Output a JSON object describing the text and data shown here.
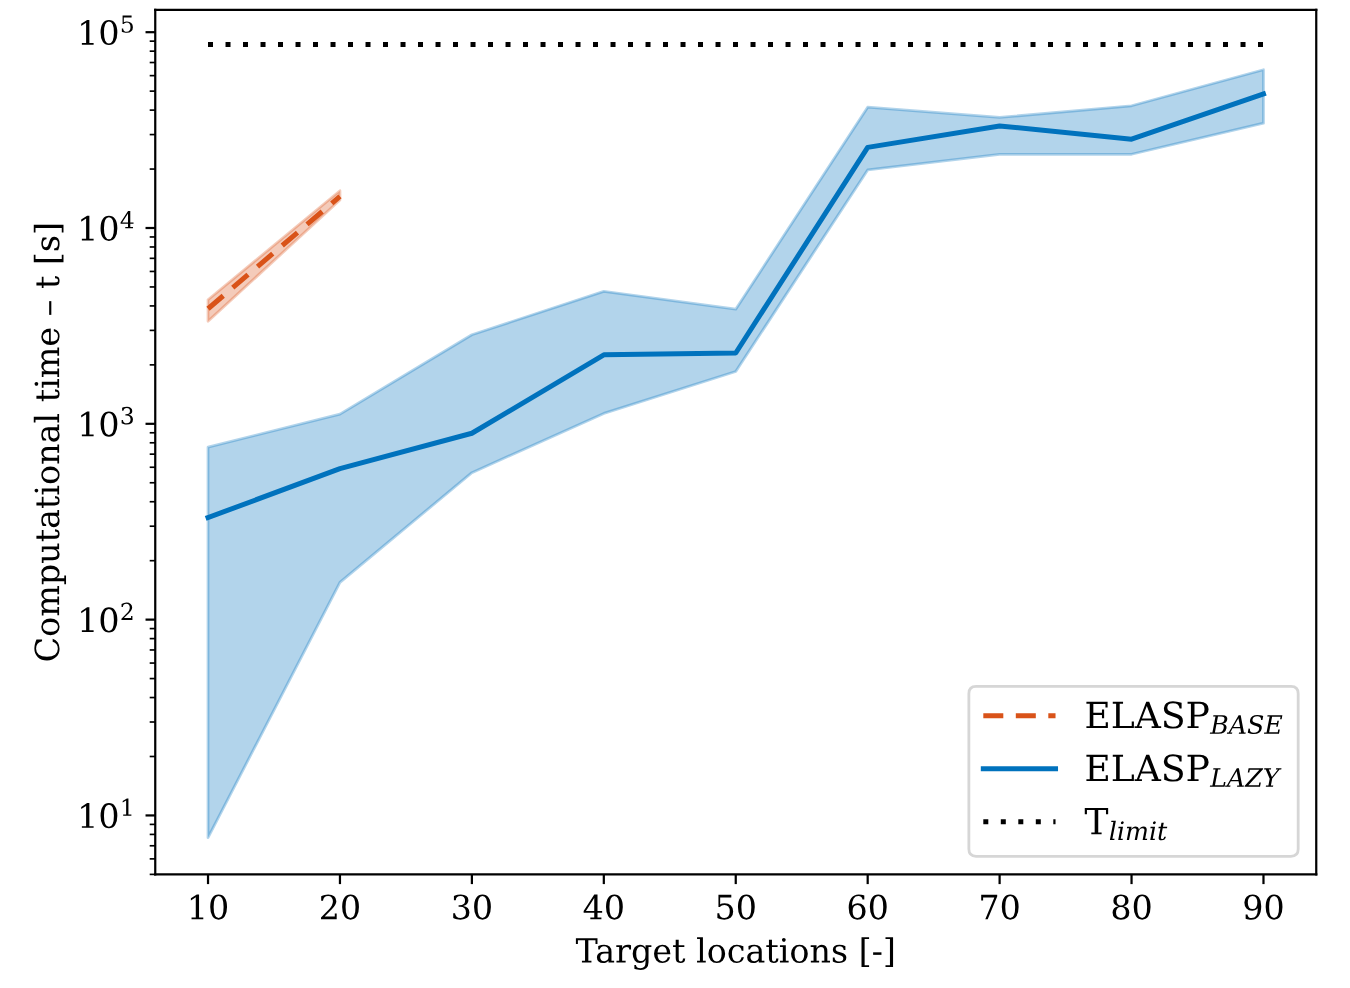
{
  "chart_data": {
    "type": "line",
    "xlabel": "Target locations [-]",
    "ylabel": "Computational time – t [s]",
    "log": "y",
    "xlim": [
      6,
      94
    ],
    "ylim": [
      5,
      130000
    ],
    "xticks": [
      10,
      20,
      30,
      40,
      50,
      60,
      70,
      80,
      90
    ],
    "yticks": [
      {
        "value": 10,
        "label": "10$^{1}$"
      },
      {
        "value": 100,
        "label": "10$^{2}$"
      },
      {
        "value": 1000,
        "label": "10$^{3}$"
      },
      {
        "value": 10000,
        "label": "10$^{4}$"
      },
      {
        "value": 100000,
        "label": "10$^{5}$"
      }
    ],
    "grid": false,
    "legend": "bottom right",
    "series": [
      {
        "name": "ELASP$_{BASE}$",
        "color": "#d95319",
        "line_style": "dashed",
        "x": [
          10,
          20
        ],
        "values": [
          3870,
          14500
        ],
        "lower": [
          3340,
          13900
        ],
        "upper": [
          4300,
          15500
        ]
      },
      {
        "name": "ELASP$_{LAZY}$",
        "color": "#0072bd",
        "line_style": "solid",
        "x": [
          10,
          20,
          30,
          40,
          50,
          60,
          70,
          80,
          90
        ],
        "values": [
          332,
          590,
          895,
          2250,
          2300,
          25800,
          33200,
          28400,
          48400
        ],
        "lower": [
          7.7,
          155,
          563,
          1130,
          1850,
          19800,
          23800,
          23800,
          34300
        ],
        "upper": [
          760,
          1120,
          2850,
          4750,
          3850,
          41400,
          36700,
          42100,
          64300
        ]
      },
      {
        "name": "T$_{limit}$",
        "color": "#000000",
        "line_style": "dotted",
        "x": [
          10,
          90
        ],
        "values": [
          86400,
          86400
        ]
      }
    ]
  }
}
